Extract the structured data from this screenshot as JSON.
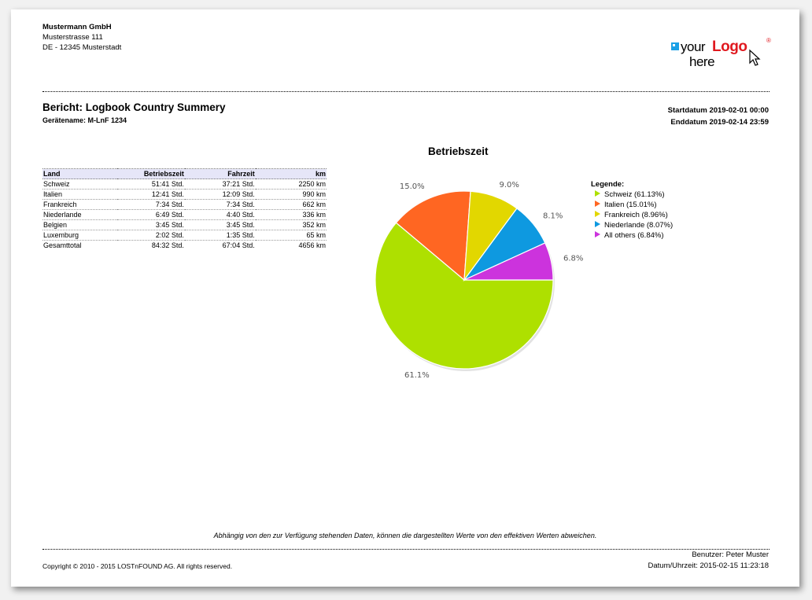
{
  "company": {
    "name": "Mustermann GmbH",
    "street": "Musterstrasse 111",
    "city": "DE - 12345 Musterstadt"
  },
  "logo": {
    "part1": "your",
    "part2": "Logo",
    "part3": "here",
    "reg": "®"
  },
  "report": {
    "title": "Bericht: Logbook Country Summery",
    "device": "Gerätename: M-LnF 1234",
    "start": "Startdatum 2019-02-01 00:00",
    "end": "Enddatum 2019-02-14 23:59"
  },
  "table": {
    "headers": [
      "Land",
      "Betriebszeit",
      "Fahrzeit",
      "km"
    ],
    "rows": [
      [
        "Schweiz",
        "51:41 Std.",
        "37:21 Std.",
        "2250 km"
      ],
      [
        "Italien",
        "12:41 Std.",
        "12:09 Std.",
        "990 km"
      ],
      [
        "Frankreich",
        "7:34 Std.",
        "7:34 Std.",
        "662 km"
      ],
      [
        "Niederlande",
        "6:49 Std.",
        "4:40 Std.",
        "336 km"
      ],
      [
        "Belgien",
        "3:45 Std.",
        "3:45 Std.",
        "352 km"
      ],
      [
        "Luxemburg",
        "2:02 Std.",
        "1:35 Std.",
        "65 km"
      ]
    ],
    "total": [
      "Gesamttotal",
      "84:32 Std.",
      "67:04 Std.",
      "4656 km"
    ]
  },
  "chart_data": {
    "type": "pie",
    "title": "Betriebszeit",
    "legend_title": "Legende:",
    "legend_position": "right",
    "slices": [
      {
        "name": "Schweiz",
        "value": 61.13,
        "label": "61.1%",
        "legend": "Schweiz (61.13%)",
        "color": "#aee000"
      },
      {
        "name": "Italien",
        "value": 15.01,
        "label": "15.0%",
        "legend": "Italien (15.01%)",
        "color": "#ff6622"
      },
      {
        "name": "Frankreich",
        "value": 8.96,
        "label": "9.0%",
        "legend": "Frankreich (8.96%)",
        "color": "#e2d700"
      },
      {
        "name": "Niederlande",
        "value": 8.07,
        "label": "8.1%",
        "legend": "Niederlande (8.07%)",
        "color": "#0e99e0"
      },
      {
        "name": "All others",
        "value": 6.84,
        "label": "6.8%",
        "legend": "All others (6.84%)",
        "color": "#cc33dd"
      }
    ]
  },
  "footer": {
    "disclaimer": "Abhängig von den zur Verfügung stehenden Daten, können die dargestellten Werte von den effektiven Werten abweichen.",
    "user": "Benutzer: Peter Muster",
    "copyright": "Copyright © 2010 - 2015 LOSTnFOUND AG. All rights reserved.",
    "datetime": "Datum/Uhrzeit: 2015-02-15 11:23:18"
  }
}
